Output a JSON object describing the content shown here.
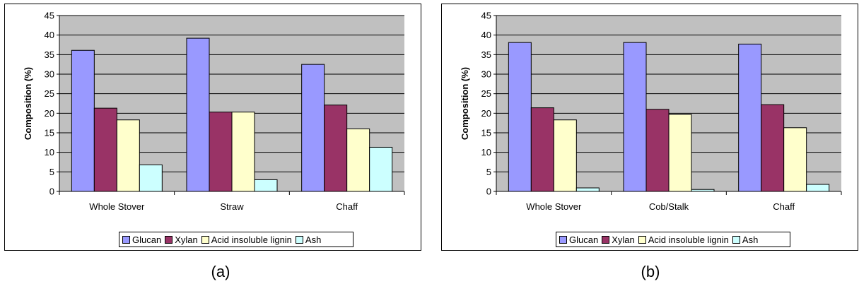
{
  "captions": [
    "(a)",
    "(b)"
  ],
  "colors": {
    "Glucan": "#9999ff",
    "Xylan": "#993366",
    "Acid insoluble lignin": "#ffffcc",
    "Ash": "#ccffff",
    "plot_bg": "#c0c0c0"
  },
  "chart_data": [
    {
      "type": "bar",
      "title": "",
      "xlabel": "",
      "ylabel": "Composition (%)",
      "ylim": [
        0,
        45
      ],
      "yticks": [
        0,
        5,
        10,
        15,
        20,
        25,
        30,
        35,
        40,
        45
      ],
      "grid": true,
      "legend": "bottom",
      "categories": [
        "Whole Stover",
        "Straw",
        "Chaff"
      ],
      "series": [
        {
          "name": "Glucan",
          "values": [
            36.1,
            39.2,
            32.5
          ]
        },
        {
          "name": "Xylan",
          "values": [
            21.3,
            20.3,
            22.1
          ]
        },
        {
          "name": "Acid insoluble lignin",
          "values": [
            18.3,
            20.3,
            16.0
          ]
        },
        {
          "name": "Ash",
          "values": [
            6.8,
            3.0,
            11.3
          ]
        }
      ]
    },
    {
      "type": "bar",
      "title": "",
      "xlabel": "",
      "ylabel": "Composition (%)",
      "ylim": [
        0,
        45
      ],
      "yticks": [
        0,
        5,
        10,
        15,
        20,
        25,
        30,
        35,
        40,
        45
      ],
      "grid": true,
      "legend": "bottom",
      "categories": [
        "Whole Stover",
        "Cob/Stalk",
        "Chaff"
      ],
      "series": [
        {
          "name": "Glucan",
          "values": [
            38.1,
            38.1,
            37.7
          ]
        },
        {
          "name": "Xylan",
          "values": [
            21.4,
            21.0,
            22.2
          ]
        },
        {
          "name": "Acid insoluble lignin",
          "values": [
            18.3,
            19.7,
            16.3
          ]
        },
        {
          "name": "Ash",
          "values": [
            0.9,
            0.5,
            1.8
          ]
        }
      ]
    }
  ]
}
